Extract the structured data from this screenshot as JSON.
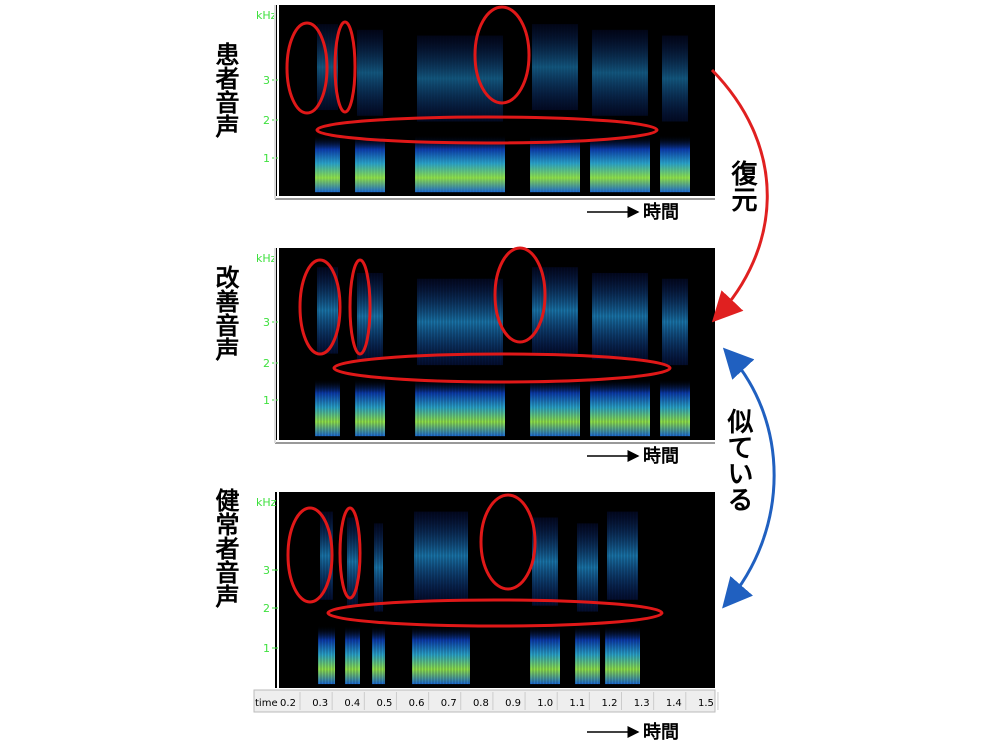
{
  "panels": [
    {
      "label": "患者音声",
      "freq_unit": "kHz",
      "freq_ticks": [
        "3",
        "2",
        "1"
      ],
      "time_label": "時間"
    },
    {
      "label": "改善音声",
      "freq_unit": "kHz",
      "freq_ticks": [
        "3",
        "2",
        "1"
      ],
      "time_label": "時間"
    },
    {
      "label": "健常者音声",
      "freq_unit": "kHz",
      "freq_ticks": [
        "3",
        "2",
        "1"
      ],
      "time_label": "時間"
    }
  ],
  "time_axis": {
    "label": "time",
    "ticks": [
      "0.2",
      "0.3",
      "0.4",
      "0.5",
      "0.6",
      "0.7",
      "0.8",
      "0.9",
      "1.0",
      "1.1",
      "1.2",
      "1.3",
      "1.4",
      "1.5"
    ]
  },
  "annotations": {
    "restore": "復元",
    "similar": "似ている"
  }
}
